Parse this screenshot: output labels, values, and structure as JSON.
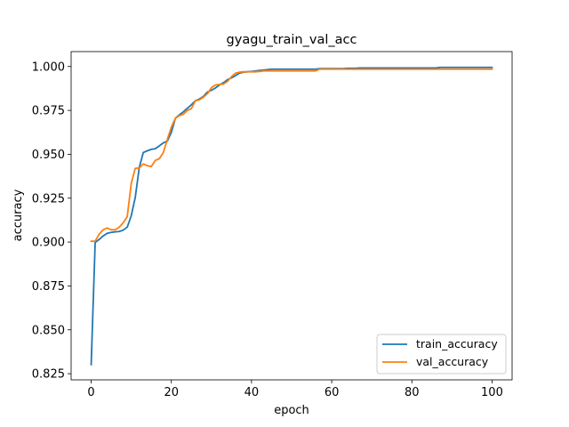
{
  "chart_data": {
    "type": "line",
    "title": "gyagu_train_val_acc",
    "xlabel": "epoch",
    "ylabel": "accuracy",
    "xlim": [
      -5,
      105
    ],
    "ylim": [
      0.8215,
      1.0085
    ],
    "xticks": [
      0,
      20,
      40,
      60,
      80,
      100
    ],
    "xtick_labels": [
      "0",
      "20",
      "40",
      "60",
      "80",
      "100"
    ],
    "yticks": [
      0.825,
      0.85,
      0.875,
      0.9,
      0.925,
      0.95,
      0.975,
      1.0
    ],
    "ytick_labels": [
      "0.825",
      "0.850",
      "0.875",
      "0.900",
      "0.925",
      "0.950",
      "0.975",
      "1.000"
    ],
    "grid": false,
    "legend_position": "lower right",
    "series": [
      {
        "name": "train_accuracy",
        "color": "#1f77b4",
        "x": [
          0,
          1,
          2,
          3,
          4,
          5,
          6,
          7,
          8,
          9,
          10,
          11,
          12,
          13,
          14,
          15,
          16,
          17,
          18,
          19,
          20,
          21,
          22,
          23,
          24,
          25,
          26,
          27,
          28,
          29,
          30,
          31,
          32,
          33,
          34,
          35,
          36,
          37,
          38,
          39,
          40,
          41,
          42,
          43,
          44,
          45,
          46,
          47,
          48,
          49,
          50,
          51,
          52,
          53,
          54,
          55,
          56,
          57,
          58,
          59,
          60,
          61,
          62,
          63,
          64,
          65,
          66,
          67,
          68,
          69,
          70,
          71,
          72,
          73,
          74,
          75,
          76,
          77,
          78,
          79,
          80,
          81,
          82,
          83,
          84,
          85,
          86,
          87,
          88,
          89,
          90,
          91,
          92,
          93,
          94,
          95,
          96,
          97,
          98,
          99,
          100
        ],
        "values": [
          0.8302,
          0.8998,
          0.9015,
          0.9035,
          0.905,
          0.9055,
          0.9058,
          0.906,
          0.9068,
          0.9085,
          0.915,
          0.9255,
          0.9425,
          0.951,
          0.952,
          0.9528,
          0.9532,
          0.9548,
          0.9565,
          0.9575,
          0.9625,
          0.9705,
          0.9725,
          0.9742,
          0.9762,
          0.9782,
          0.9805,
          0.9815,
          0.983,
          0.9855,
          0.9865,
          0.9878,
          0.9895,
          0.9908,
          0.9925,
          0.9935,
          0.9948,
          0.9962,
          0.9968,
          0.997,
          0.9972,
          0.9975,
          0.9978,
          0.998,
          0.9982,
          0.9985,
          0.9985,
          0.9985,
          0.9985,
          0.9985,
          0.9985,
          0.9985,
          0.9985,
          0.9985,
          0.9985,
          0.9985,
          0.9985,
          0.9988,
          0.9988,
          0.9988,
          0.9988,
          0.9988,
          0.9988,
          0.9988,
          0.999,
          0.999,
          0.999,
          0.9992,
          0.9992,
          0.9992,
          0.9992,
          0.9992,
          0.9992,
          0.9992,
          0.9992,
          0.9992,
          0.9992,
          0.9992,
          0.9992,
          0.9992,
          0.9992,
          0.9992,
          0.9992,
          0.9992,
          0.9992,
          0.9992,
          0.9992,
          0.9995,
          0.9995,
          0.9995,
          0.9995,
          0.9995,
          0.9995,
          0.9995,
          0.9995,
          0.9995,
          0.9995,
          0.9995,
          0.9995,
          0.9995,
          0.9995
        ]
      },
      {
        "name": "val_accuracy",
        "color": "#ff7f0e",
        "x": [
          0,
          1,
          2,
          3,
          4,
          5,
          6,
          7,
          8,
          9,
          10,
          11,
          12,
          13,
          14,
          15,
          16,
          17,
          18,
          19,
          20,
          21,
          22,
          23,
          24,
          25,
          26,
          27,
          28,
          29,
          30,
          31,
          32,
          33,
          34,
          35,
          36,
          37,
          38,
          39,
          40,
          41,
          42,
          43,
          44,
          45,
          46,
          47,
          48,
          49,
          50,
          51,
          52,
          53,
          54,
          55,
          56,
          57,
          58,
          59,
          60,
          61,
          62,
          63,
          64,
          65,
          66,
          67,
          68,
          69,
          70,
          71,
          72,
          73,
          74,
          75,
          76,
          77,
          78,
          79,
          80,
          81,
          82,
          83,
          84,
          85,
          86,
          87,
          88,
          89,
          90,
          91,
          92,
          93,
          94,
          95,
          96,
          97,
          98,
          99,
          100
        ],
        "values": [
          0.9005,
          0.9005,
          0.9045,
          0.907,
          0.908,
          0.907,
          0.907,
          0.9085,
          0.911,
          0.9145,
          0.9335,
          0.942,
          0.9422,
          0.9445,
          0.9435,
          0.943,
          0.9465,
          0.9475,
          0.951,
          0.9585,
          0.9655,
          0.9705,
          0.972,
          0.9728,
          0.975,
          0.976,
          0.9805,
          0.981,
          0.9825,
          0.9845,
          0.988,
          0.9895,
          0.9898,
          0.99,
          0.9915,
          0.9942,
          0.9962,
          0.9968,
          0.997,
          0.997,
          0.997,
          0.997,
          0.9972,
          0.9975,
          0.9975,
          0.9975,
          0.9975,
          0.9975,
          0.9975,
          0.9975,
          0.9975,
          0.9975,
          0.9975,
          0.9975,
          0.9975,
          0.9975,
          0.9975,
          0.9985,
          0.9985,
          0.9985,
          0.9985,
          0.9985,
          0.9985,
          0.9985,
          0.9985,
          0.9985,
          0.9985,
          0.9985,
          0.9985,
          0.9985,
          0.9985,
          0.9985,
          0.9985,
          0.9985,
          0.9985,
          0.9985,
          0.9985,
          0.9985,
          0.9985,
          0.9985,
          0.9985,
          0.9985,
          0.9985,
          0.9985,
          0.9985,
          0.9985,
          0.9985,
          0.9985,
          0.9985,
          0.9985,
          0.9985,
          0.9985,
          0.9985,
          0.9985,
          0.9985,
          0.9985,
          0.9985,
          0.9985,
          0.9985,
          0.9985,
          0.9985
        ]
      }
    ]
  }
}
